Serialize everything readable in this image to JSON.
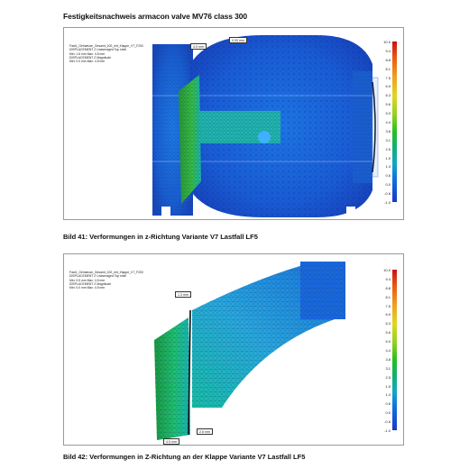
{
  "document": {
    "title": "Festigkeitsnachweis armacon valve MV76 class 300"
  },
  "figures": [
    {
      "caption": "Bild 41: Verformungen in z-Richtung Variante V7 Lastfall LF5",
      "info_lines": [
        "Fast1_Gehaeuse_Gesamt_100_mit_Klappe_V7_F200",
        "DISPLACEMENT  Z  Unaveraged  Top shell",
        "Min: 1.6 mm   Max: 4.5 mm",
        "DISPLACEMENT  Z  Magnitude",
        "Min: 0.0 mm   Max: 4.5 mm"
      ],
      "callouts": [
        "4.5 mm",
        "0.00 mm"
      ],
      "legend_values": [
        "10.0",
        "9.4",
        "8.8",
        "8.1",
        "7.5",
        "6.9",
        "6.3",
        "5.6",
        "5.0",
        "4.4",
        "3.8",
        "3.1",
        "2.5",
        "1.9",
        "1.3",
        "0.6",
        "0.0",
        "-0.6",
        "-1.0"
      ]
    },
    {
      "caption": "Bild 42: Verformungen in Z-Richtung an der Klappe Variante V7 Lastfall LF5",
      "info_lines": [
        "Fast1_Gehaeuse_Gesamt_100_mit_Klappe_V7_F200",
        "DISPLACEMENT  Z  Unaveraged  Top shell",
        "Min: 0.5 mm   Max: 4.5 mm",
        "DISPLACEMENT  Z  Magnitude",
        "Min: 0.0 mm   Max: 4.5 mm"
      ],
      "callouts": [
        "1.3 mm",
        "2.6 mm",
        "4.5 mm"
      ],
      "legend_values": [
        "10.0",
        "9.4",
        "8.8",
        "8.1",
        "7.5",
        "6.9",
        "6.3",
        "5.6",
        "5.0",
        "4.4",
        "3.8",
        "3.1",
        "2.5",
        "1.9",
        "1.3",
        "0.6",
        "0.0",
        "-0.6",
        "-1.0"
      ]
    }
  ]
}
